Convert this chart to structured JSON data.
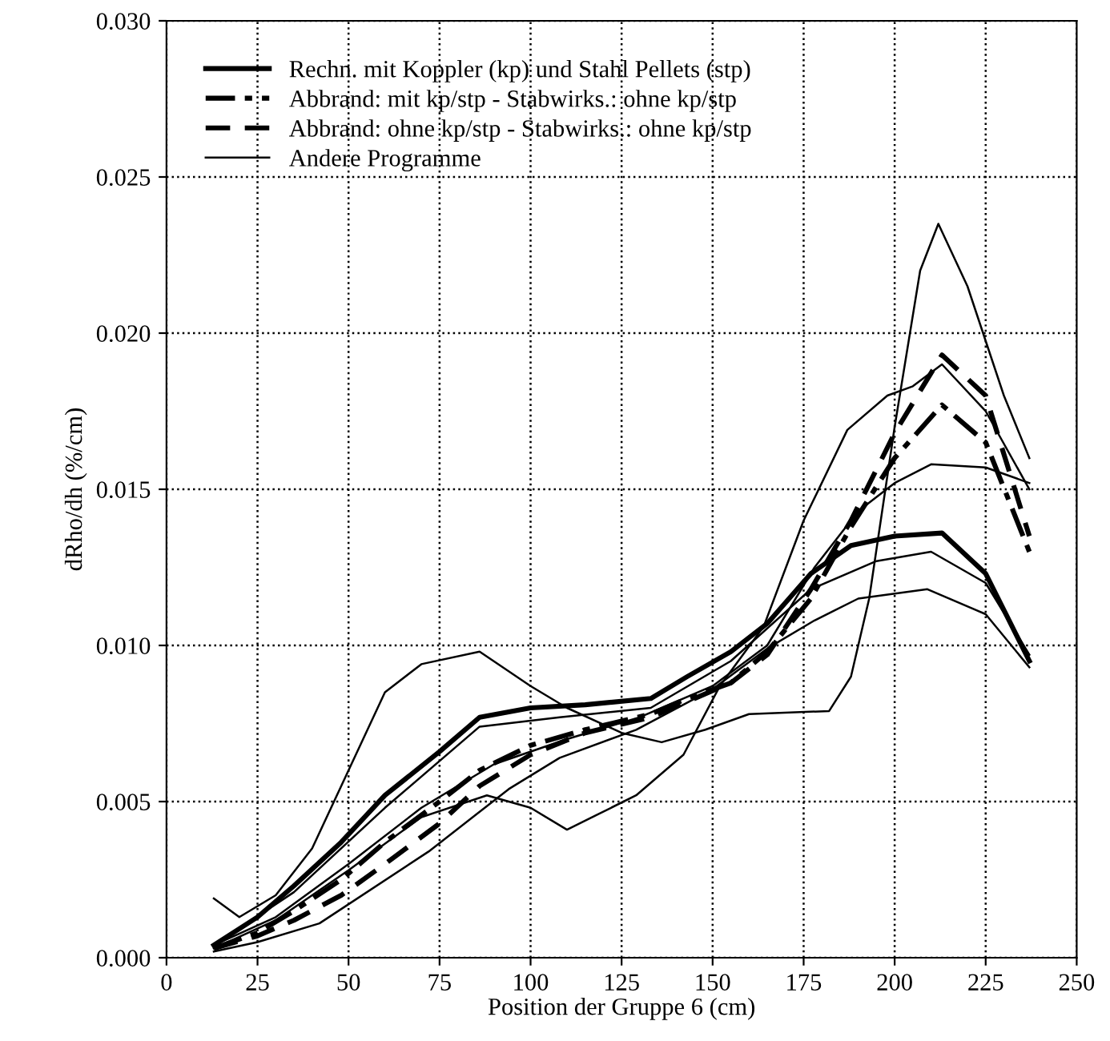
{
  "chart_data": {
    "type": "line",
    "xlabel": "Position der Gruppe 6 (cm)",
    "ylabel": "dRho/dh (%/cm)",
    "xlim": [
      0,
      250
    ],
    "xticks": [
      0,
      25,
      50,
      75,
      100,
      125,
      150,
      175,
      200,
      225,
      250
    ],
    "ylim": [
      0,
      0.03
    ],
    "yticks": [
      {
        "value": 0,
        "label": "0.000"
      },
      {
        "value": 0.005,
        "label": "0.005"
      },
      {
        "value": 0.01,
        "label": "0.010"
      },
      {
        "value": 0.015,
        "label": "0.015"
      },
      {
        "value": 0.02,
        "label": "0.020"
      },
      {
        "value": 0.025,
        "label": "0.025"
      },
      {
        "value": 0.03,
        "label": "0.030"
      }
    ],
    "grid": true,
    "legend": "top left",
    "marker": "none",
    "series": [
      {
        "name": "Rechn. mit Koppler (kp) und Stahl Pellets (stp)",
        "color": "#000000",
        "line_style": "solid",
        "x": [
          13,
          25,
          35,
          48,
          60,
          75,
          86,
          100,
          115,
          133,
          143,
          155,
          165,
          177,
          188,
          200,
          213,
          225,
          237
        ],
        "values": [
          0.0004,
          0.0013,
          0.0023,
          0.0037,
          0.0052,
          0.0066,
          0.0077,
          0.008,
          0.0081,
          0.0083,
          0.009,
          0.0098,
          0.0107,
          0.0123,
          0.0132,
          0.0135,
          0.0136,
          0.0123,
          0.0095
        ]
      },
      {
        "name": "Abbrand: mit kp/stp - Stabwirks.: ohne kp/stp",
        "color": "#000000",
        "line_style": "dashdot",
        "x": [
          13,
          25,
          35,
          48,
          60,
          75,
          86,
          100,
          115,
          133,
          143,
          155,
          165,
          177,
          188,
          200,
          213,
          225,
          237
        ],
        "values": [
          0.0003,
          0.0008,
          0.0015,
          0.0025,
          0.0037,
          0.005,
          0.006,
          0.0068,
          0.0073,
          0.0078,
          0.0083,
          0.0088,
          0.0098,
          0.0115,
          0.0138,
          0.016,
          0.0177,
          0.0165,
          0.013
        ]
      },
      {
        "name": "Abbrand: ohne kp/stp - Stabwirks.: ohne kp/stp",
        "color": "#000000",
        "line_style": "dashed",
        "x": [
          13,
          25,
          35,
          48,
          60,
          75,
          86,
          100,
          115,
          133,
          143,
          155,
          165,
          177,
          188,
          200,
          213,
          225,
          237
        ],
        "values": [
          0.0003,
          0.0007,
          0.0012,
          0.002,
          0.003,
          0.0043,
          0.0055,
          0.0065,
          0.0072,
          0.0077,
          0.0082,
          0.0088,
          0.0097,
          0.0118,
          0.014,
          0.0168,
          0.0193,
          0.018,
          0.0135
        ]
      },
      {
        "name": "Andere Programme",
        "color": "#000000",
        "line_style": "solid",
        "x": [
          13,
          20,
          30,
          40,
          50,
          60,
          70,
          86,
          100,
          110,
          125,
          136,
          148,
          160,
          182,
          188,
          193,
          200,
          207,
          212,
          220,
          230,
          237
        ],
        "values": [
          0.0019,
          0.0013,
          0.002,
          0.0035,
          0.006,
          0.0085,
          0.0094,
          0.0098,
          0.0087,
          0.008,
          0.0072,
          0.0069,
          0.0073,
          0.0078,
          0.0079,
          0.009,
          0.0115,
          0.017,
          0.022,
          0.0235,
          0.0215,
          0.018,
          0.016
        ]
      },
      {
        "color": "#000000",
        "line_style": "solid",
        "x": [
          13,
          30,
          50,
          70,
          88,
          100,
          110,
          129,
          142,
          152,
          164,
          175,
          187,
          198,
          205,
          213,
          225,
          237
        ],
        "values": [
          0.0003,
          0.0012,
          0.0028,
          0.0045,
          0.0052,
          0.0048,
          0.0041,
          0.0052,
          0.0065,
          0.0087,
          0.0106,
          0.014,
          0.0169,
          0.018,
          0.0183,
          0.019,
          0.0175,
          0.015
        ]
      },
      {
        "color": "#000000",
        "line_style": "solid",
        "x": [
          13,
          30,
          50,
          70,
          90,
          110,
          130,
          150,
          165,
          178,
          190,
          200,
          210,
          225,
          237
        ],
        "values": [
          0.0004,
          0.0013,
          0.003,
          0.0048,
          0.0062,
          0.007,
          0.0077,
          0.0087,
          0.01,
          0.0125,
          0.0143,
          0.0152,
          0.0158,
          0.0157,
          0.0152
        ]
      },
      {
        "color": "#000000",
        "line_style": "solid",
        "x": [
          13,
          35,
          60,
          86,
          108,
          133,
          155,
          177,
          195,
          210,
          225,
          237
        ],
        "values": [
          0.0004,
          0.0021,
          0.0048,
          0.0074,
          0.0077,
          0.008,
          0.0095,
          0.0118,
          0.0127,
          0.013,
          0.012,
          0.0097
        ]
      },
      {
        "color": "#000000",
        "line_style": "solid",
        "x": [
          13,
          25,
          42,
          72,
          94,
          108,
          129,
          150,
          165,
          178,
          190,
          209,
          225,
          237
        ],
        "values": [
          0.0002,
          0.0005,
          0.0011,
          0.0034,
          0.0054,
          0.0064,
          0.0073,
          0.0086,
          0.0099,
          0.0108,
          0.0115,
          0.0118,
          0.011,
          0.0093
        ]
      }
    ]
  }
}
